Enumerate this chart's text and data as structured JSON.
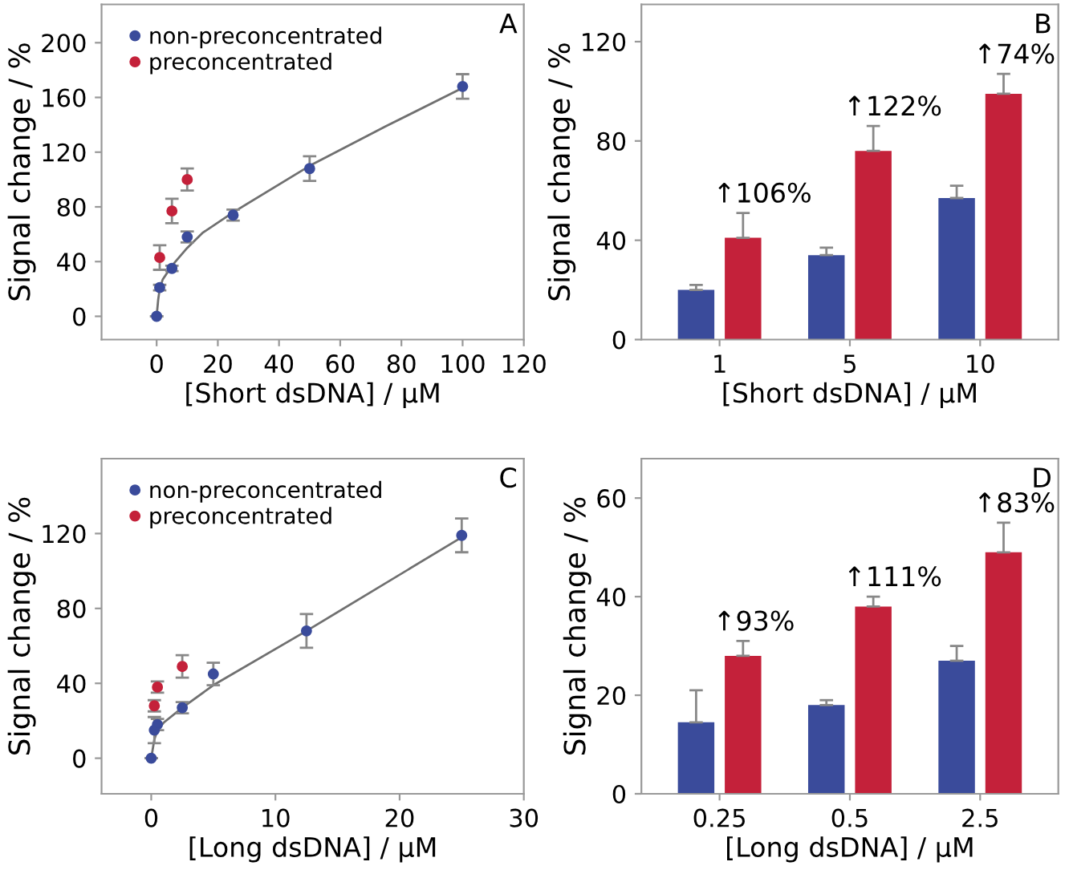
{
  "chart_data": [
    {
      "type": "scatter",
      "title": "A",
      "xlabel": "[Short dsDNA] / µM",
      "ylabel": "Signal change / %",
      "xlim": [
        -18,
        120
      ],
      "xticks": [
        0,
        20,
        40,
        60,
        80,
        100,
        120
      ],
      "ylim": [
        -17,
        228
      ],
      "yticks": [
        0,
        40,
        80,
        120,
        160,
        200
      ],
      "grid": false,
      "legend": "top left",
      "marker": "circle",
      "series": [
        {
          "name": "non-preconcentrated",
          "color": "#3a4b9b",
          "x": [
            0,
            1,
            5,
            10,
            25,
            50,
            100
          ],
          "values": [
            0,
            21,
            35,
            58,
            74,
            108,
            168
          ],
          "errors": [
            null,
            2,
            2,
            4,
            4,
            9,
            9
          ]
        },
        {
          "name": "preconcentrated",
          "color": "#c4213a",
          "x": [
            1,
            5,
            10
          ],
          "values": [
            43,
            77,
            100
          ],
          "errors": [
            9,
            9,
            8
          ]
        },
        {
          "type": "line",
          "marker": "none",
          "color": "#707070",
          "x": [
            0,
            0.5,
            1,
            2,
            5,
            10,
            15,
            25,
            50,
            75,
            100
          ],
          "values": [
            0,
            12,
            20,
            27,
            37,
            50,
            61,
            76,
            110,
            139,
            167
          ]
        }
      ]
    },
    {
      "type": "bar",
      "title": "B",
      "xlabel": "[Short dsDNA] / µM",
      "ylabel": "Signal change / %",
      "categories": [
        "1",
        "5",
        "10"
      ],
      "ylim": [
        0,
        135
      ],
      "yticks": [
        0,
        40,
        80,
        120
      ],
      "grid": false,
      "series": [
        {
          "color": "#3a4b9b",
          "values": [
            20,
            34,
            57
          ],
          "errors": [
            [
              20,
              22
            ],
            [
              34,
              37
            ],
            [
              57,
              62
            ]
          ]
        },
        {
          "color": "#c4213a",
          "values": [
            41,
            76,
            99
          ],
          "errors": [
            [
              41,
              51
            ],
            [
              76,
              86
            ],
            [
              99,
              107
            ]
          ]
        }
      ],
      "annotations": [
        "↑106%",
        "↑122%",
        "↑74%"
      ]
    },
    {
      "type": "scatter",
      "title": "C",
      "xlabel": "[Long dsDNA] / µM",
      "ylabel": "Signal change / %",
      "xlim": [
        -4,
        30
      ],
      "xticks": [
        0,
        10,
        20,
        30
      ],
      "ylim": [
        -19,
        160
      ],
      "yticks": [
        0,
        40,
        80,
        120
      ],
      "grid": false,
      "legend": "top left",
      "marker": "circle",
      "series": [
        {
          "name": "non-preconcentrated",
          "color": "#3a4b9b",
          "x": [
            0,
            0.25,
            0.5,
            2.5,
            5,
            12.5,
            25
          ],
          "values": [
            0,
            15,
            18,
            27,
            45,
            68,
            119
          ],
          "errors": [
            null,
            7,
            3,
            3,
            6,
            9,
            9
          ]
        },
        {
          "name": "preconcentrated",
          "color": "#c4213a",
          "x": [
            0.25,
            0.5,
            2.5
          ],
          "values": [
            28,
            38,
            49
          ],
          "errors": [
            3,
            3,
            6
          ]
        },
        {
          "type": "line",
          "marker": "none",
          "color": "#707070",
          "x": [
            0,
            0.25,
            0.5,
            1,
            2.5,
            5,
            12.5,
            25
          ],
          "values": [
            0,
            10,
            15,
            19,
            27,
            39,
            68,
            118
          ]
        }
      ]
    },
    {
      "type": "bar",
      "title": "D",
      "xlabel": "[Long dsDNA] / µM",
      "ylabel": "Signal change / %",
      "categories": [
        "0.25",
        "0.5",
        "2.5"
      ],
      "ylim": [
        0,
        68
      ],
      "yticks": [
        0,
        20,
        40,
        60
      ],
      "grid": false,
      "series": [
        {
          "color": "#3a4b9b",
          "values": [
            14.5,
            18,
            27
          ],
          "errors": [
            [
              14.5,
              21
            ],
            [
              18,
              19
            ],
            [
              27,
              30
            ]
          ]
        },
        {
          "color": "#c4213a",
          "values": [
            28,
            38,
            49
          ],
          "errors": [
            [
              28,
              31
            ],
            [
              38,
              40
            ],
            [
              49,
              55
            ]
          ]
        }
      ],
      "annotations": [
        "↑93%",
        "↑111%",
        "↑83%"
      ]
    }
  ]
}
